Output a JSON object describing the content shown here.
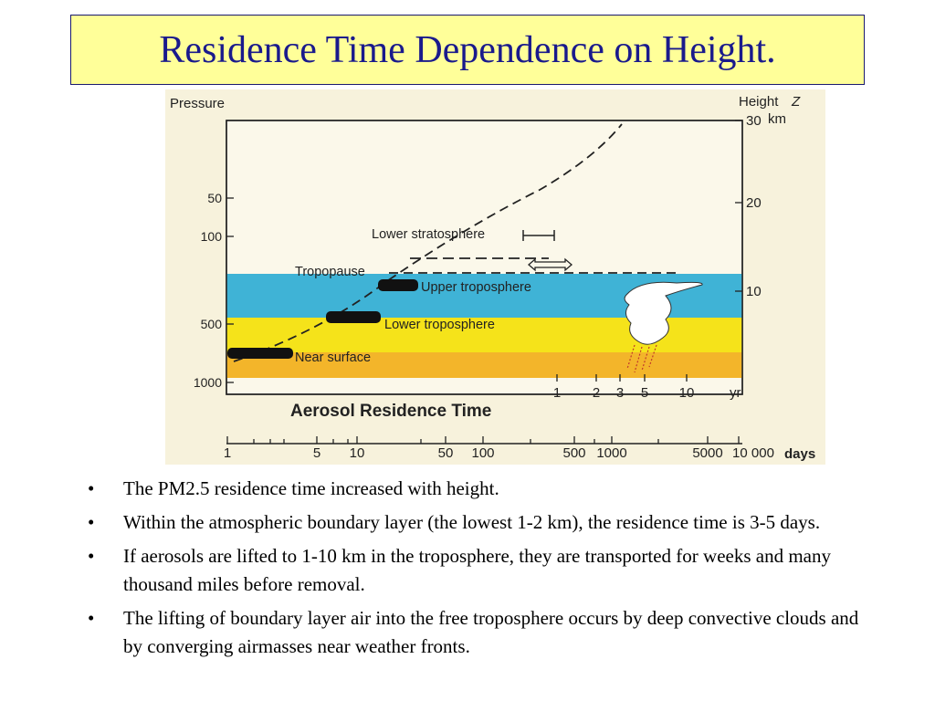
{
  "title": "Residence Time Dependence on Height.",
  "figure": {
    "pressure_label": "Pressure",
    "height_label": "Height",
    "height_symbol": "Z",
    "height_unit": "km",
    "pressure_ticks": [
      "50",
      "100",
      "500",
      "1000"
    ],
    "height_ticks": [
      "30",
      "20",
      "10"
    ],
    "labels": {
      "lower_stratosphere": "Lower stratosphere",
      "tropopause": "Tropopause",
      "upper_troposphere": "Upper troposphere",
      "lower_troposphere": "Lower troposphere",
      "near_surface": "Near surface",
      "chart_title": "Aerosol Residence Time"
    },
    "yr_ticks": [
      "1",
      "2",
      "3",
      "5",
      "10"
    ],
    "yr_unit": "yr",
    "days_ticks": [
      "1",
      "5",
      "10",
      "50",
      "100",
      "500",
      "1000",
      "5000",
      "10 000"
    ],
    "days_unit": "days",
    "colors": {
      "background": "#f7f2dc",
      "upper_band": "#3fb3d6",
      "lower_band": "#f5e31a",
      "surface_band": "#f3b52a"
    }
  },
  "bullets": [
    "The PM2.5 residence time increased with height.",
    "Within the atmospheric boundary layer (the lowest 1-2 km), the residence time is 3-5 days.",
    "If aerosols are lifted to 1-10 km in the troposphere, they are transported for weeks and many thousand miles before removal.",
    "The lifting of boundary layer air into the free troposphere occurs by deep convective clouds and by converging airmasses near weather fronts."
  ]
}
